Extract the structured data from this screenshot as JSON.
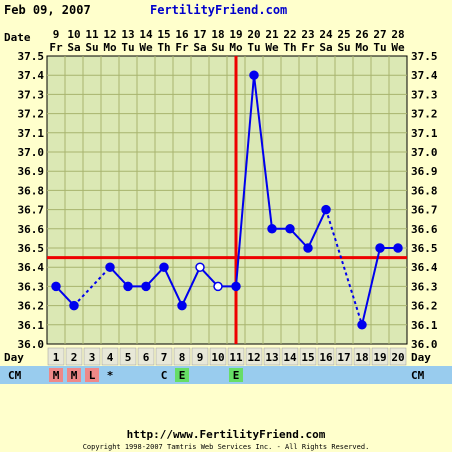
{
  "header": {
    "date": "Feb 09, 2007",
    "site": "FertilityFriend.com"
  },
  "labels": {
    "date_row": "Date",
    "day_row": "Day",
    "cm_row": "CM"
  },
  "footer": {
    "url": "http://www.FertilityFriend.com",
    "copyright": "Copyright 1998-2007 Tamtris Web Services Inc. - All Rights Reserved."
  },
  "colors": {
    "background": "#ffffcc",
    "plot_background": "#dbe8b4",
    "grid": "#a8b46e",
    "temp_line": "#0000ee",
    "coverline": "#ee0000",
    "ovulation_line": "#ee0000",
    "cm_row": "#99ccee",
    "menses_cell": "#ee8888",
    "egg_white_cell": "#66dd66",
    "day_cell": "#e8e8d8"
  },
  "chart_data": {
    "type": "line",
    "title": "",
    "ylabel": "",
    "xlabel": "",
    "ylim": [
      36.0,
      37.5
    ],
    "y_ticks": [
      "36.0",
      "36.1",
      "36.2",
      "36.3",
      "36.4",
      "36.5",
      "36.6",
      "36.7",
      "36.8",
      "36.9",
      "37.0",
      "37.1",
      "37.2",
      "37.3",
      "37.4",
      "37.5"
    ],
    "dates": [
      "9",
      "10",
      "11",
      "12",
      "13",
      "14",
      "15",
      "16",
      "17",
      "18",
      "19",
      "20",
      "21",
      "22",
      "23",
      "24",
      "25",
      "26",
      "27",
      "28"
    ],
    "weekdays": [
      "Fr",
      "Sa",
      "Su",
      "Mo",
      "Tu",
      "We",
      "Th",
      "Fr",
      "Sa",
      "Su",
      "Mo",
      "Tu",
      "We",
      "Th",
      "Fr",
      "Sa",
      "Su",
      "Mo",
      "Tu",
      "We"
    ],
    "cycle_days": [
      "1",
      "2",
      "3",
      "4",
      "5",
      "6",
      "7",
      "8",
      "9",
      "10",
      "11",
      "12",
      "13",
      "14",
      "15",
      "16",
      "17",
      "18",
      "19",
      "20"
    ],
    "temperatures": [
      36.3,
      36.2,
      null,
      36.4,
      36.3,
      36.3,
      36.4,
      36.2,
      36.4,
      36.3,
      36.3,
      37.4,
      36.6,
      36.6,
      36.5,
      36.7,
      null,
      36.1,
      36.5,
      36.5
    ],
    "open_points": [
      9,
      10
    ],
    "coverline": 36.45,
    "ovulation_day": 11,
    "cm": [
      "M",
      "M",
      "L",
      "*",
      "",
      "",
      "C",
      "E",
      "",
      "",
      "E",
      "",
      "",
      "",
      "",
      "",
      "",
      "",
      "",
      ""
    ],
    "grid": true
  }
}
